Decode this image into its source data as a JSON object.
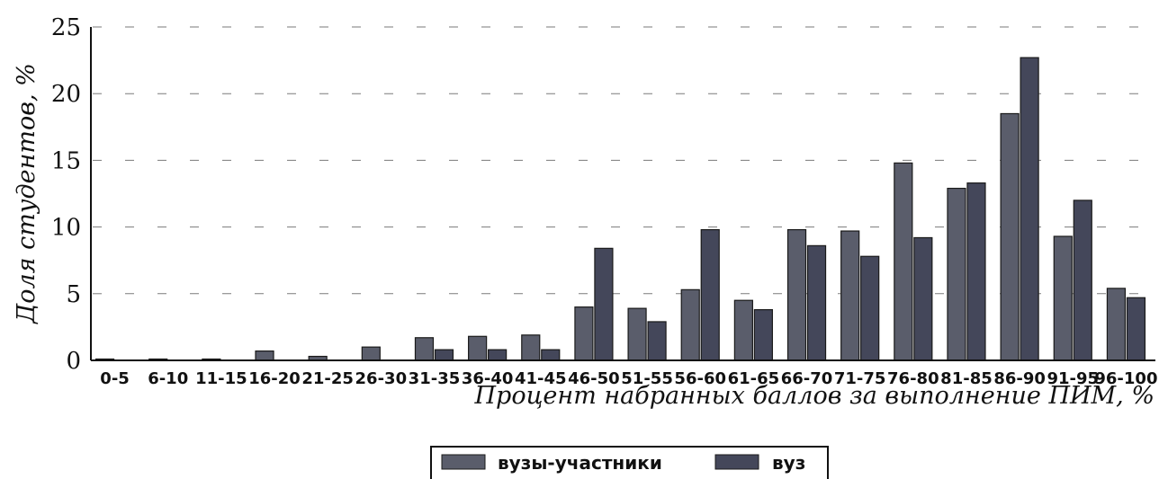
{
  "chart_data": {
    "type": "bar",
    "xlabel": "Процент набранных баллов за выполнение ПИМ, %",
    "ylabel": "Доля студентов, %",
    "ylim": [
      0,
      25
    ],
    "yticks": [
      "0",
      "5",
      "10",
      "15",
      "20",
      "25"
    ],
    "grid": true,
    "legend_position": "bottom-center",
    "categories": [
      "0-5",
      "6-10",
      "11-15",
      "16-20",
      "21-25",
      "26-30",
      "31-35",
      "36-40",
      "41-45",
      "46-50",
      "51-55",
      "56-60",
      "61-65",
      "66-70",
      "71-75",
      "76-80",
      "81-85",
      "86-90",
      "91-95",
      "96-100"
    ],
    "series": [
      {
        "name": "вузы-участники",
        "color": "#5a5d6b",
        "values": [
          0.1,
          0.1,
          0.1,
          0.7,
          0.3,
          1.0,
          1.7,
          1.8,
          1.9,
          4.0,
          3.9,
          5.3,
          4.5,
          9.8,
          9.7,
          14.8,
          12.9,
          18.5,
          9.3,
          5.4
        ]
      },
      {
        "name": "вуз",
        "color": "#44475a",
        "values": [
          0,
          0,
          0,
          0,
          0,
          0,
          0.8,
          0.8,
          0.8,
          8.4,
          2.9,
          9.8,
          3.8,
          8.6,
          7.8,
          9.2,
          13.3,
          22.7,
          12.0,
          4.7
        ]
      }
    ]
  }
}
